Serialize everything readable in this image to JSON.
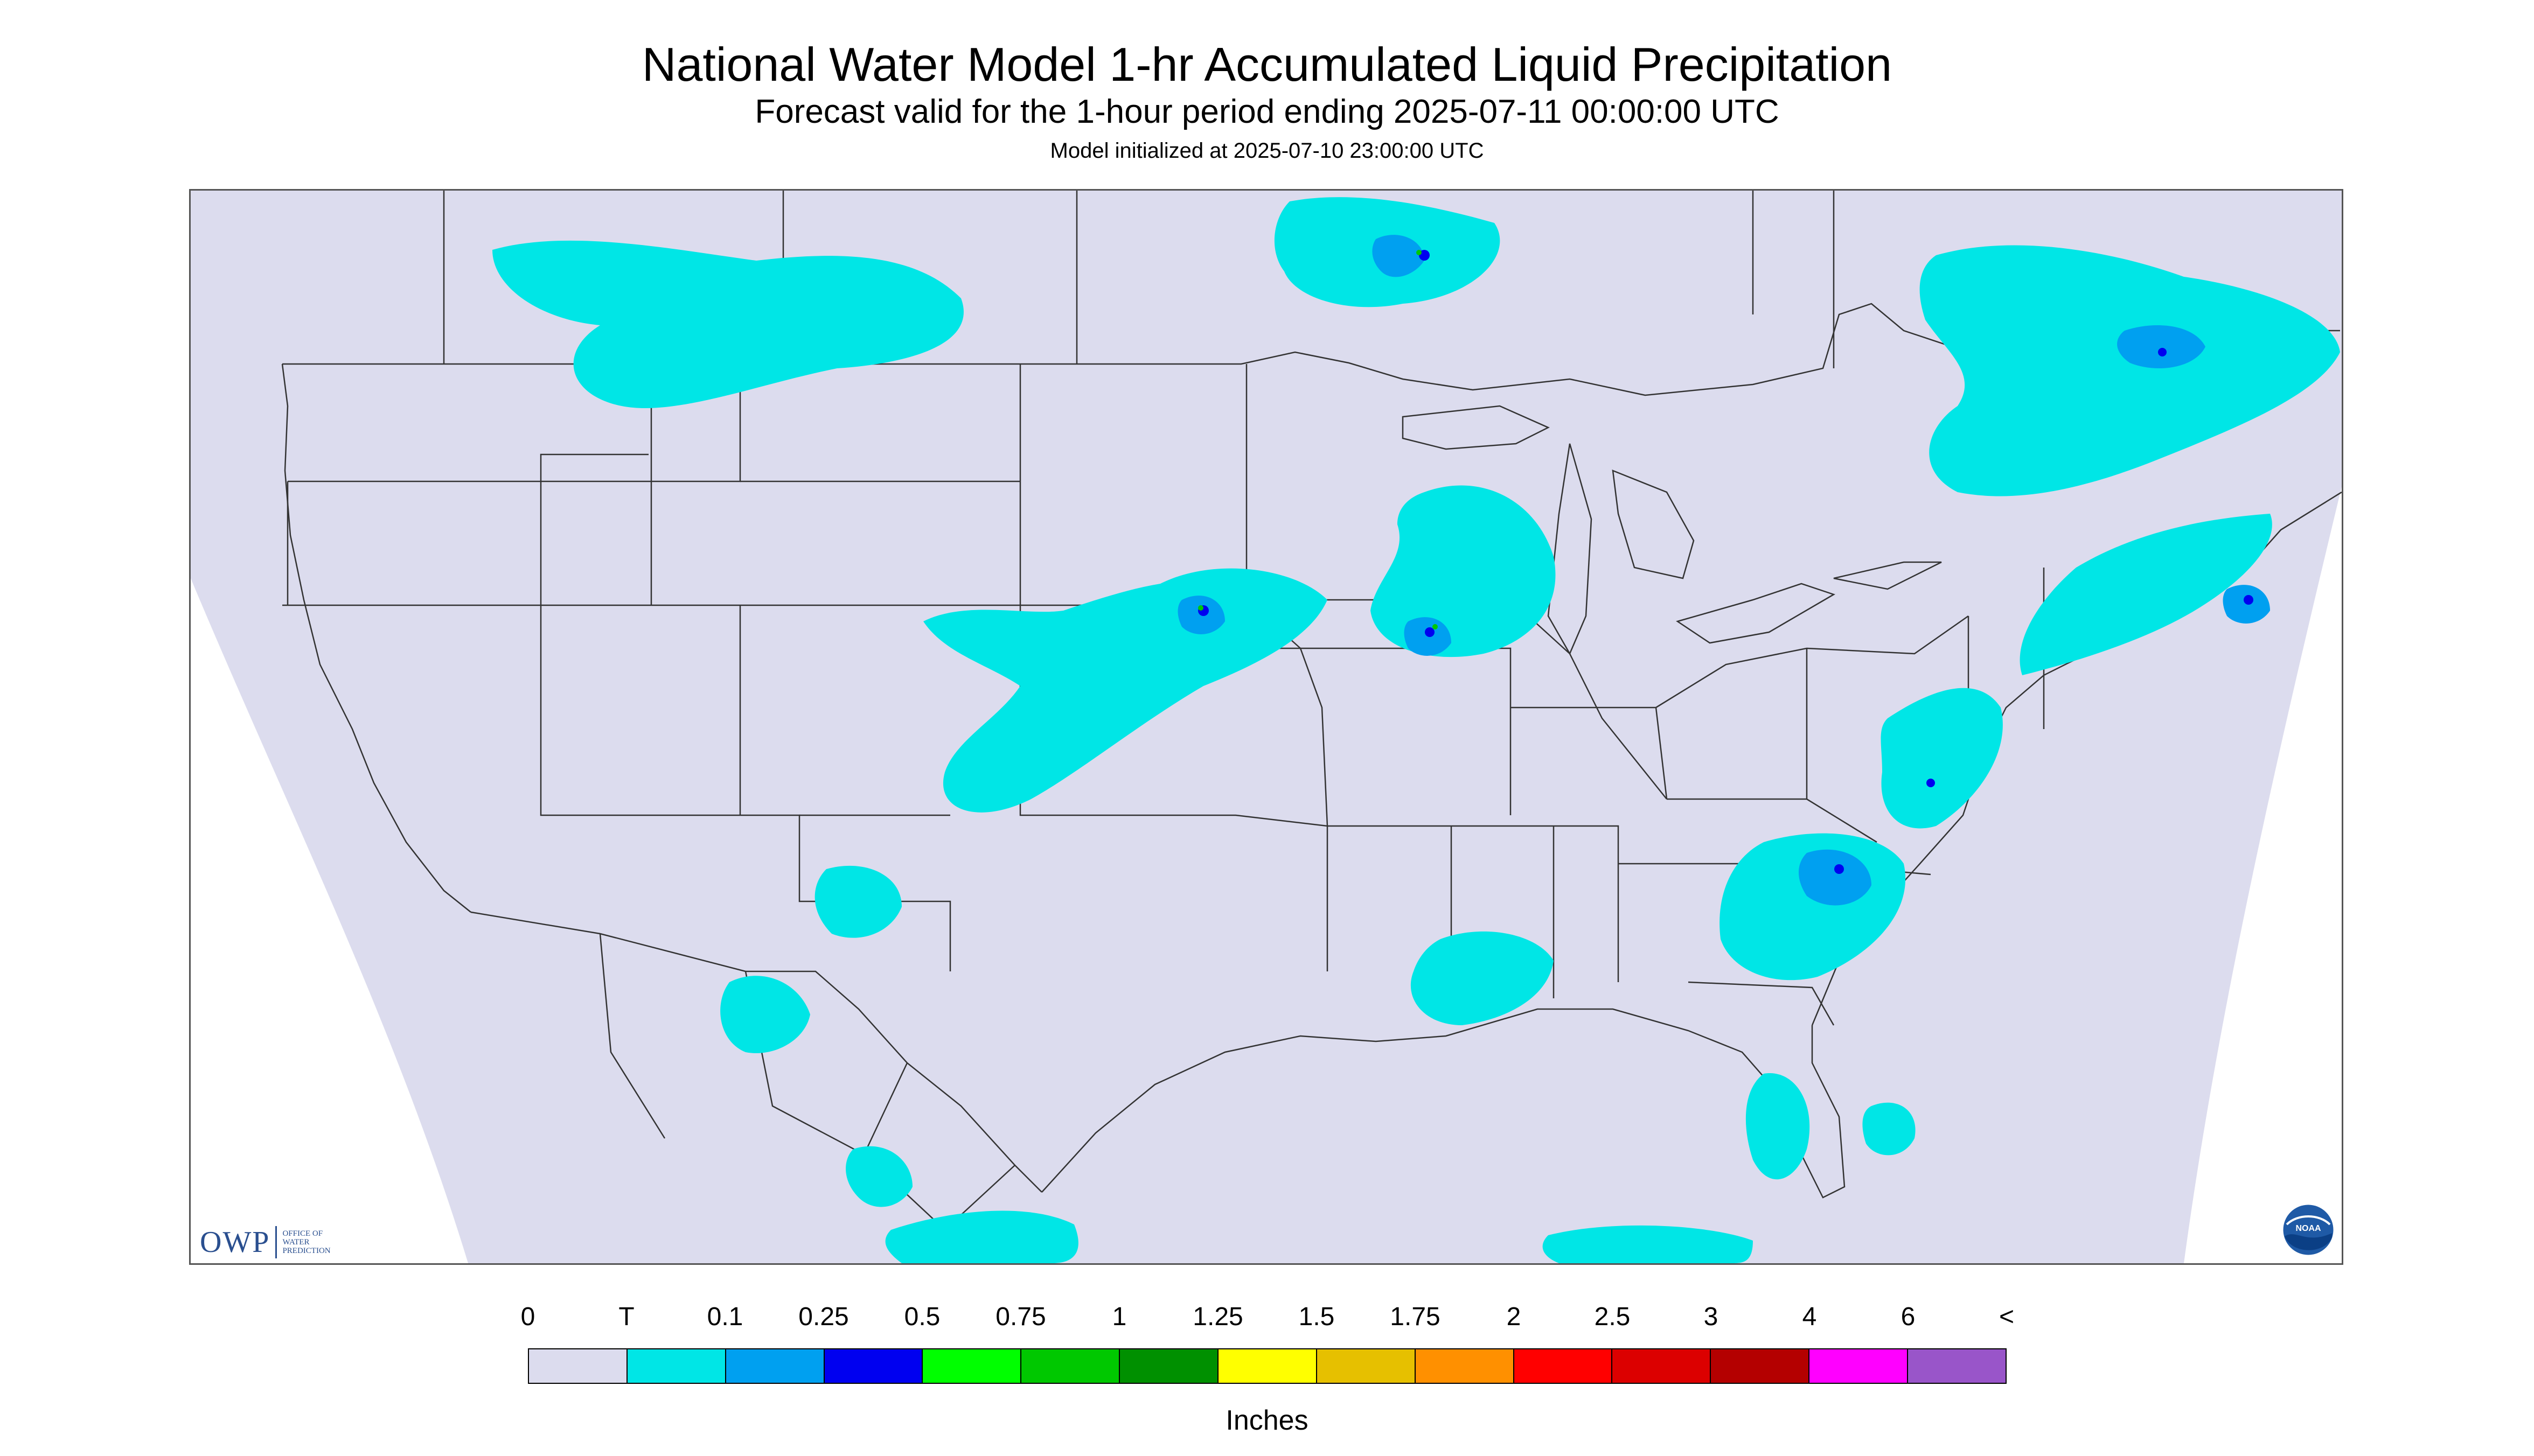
{
  "title": "National Water Model 1-hr Accumulated Liquid Precipitation",
  "subtitle": "Forecast valid for the 1-hour period ending 2025-07-11 00:00:00 UTC",
  "initialized": "Model initialized at 2025-07-10 23:00:00 UTC",
  "logos": {
    "owp_mark": "OWP",
    "owp_text_lines": [
      "OFFICE OF",
      "WATER",
      "PREDICTION"
    ],
    "noaa": "NOAA"
  },
  "legend": {
    "tick_labels": [
      "0",
      "T",
      "0.1",
      "0.25",
      "0.5",
      "0.75",
      "1",
      "1.25",
      "1.5",
      "1.75",
      "2",
      "2.5",
      "3",
      "4",
      "6",
      "<"
    ],
    "colors": [
      "#dcdcee",
      "#00e6e6",
      "#00a0f0",
      "#0000f0",
      "#00ff00",
      "#00c800",
      "#009000",
      "#ffff00",
      "#e6c000",
      "#ff9000",
      "#ff0000",
      "#dc0000",
      "#b40000",
      "#ff00ff",
      "#9955c9"
    ],
    "units": "Inches"
  },
  "map": {
    "domain_color": "#dcdcee",
    "outside_color": "#ffffff",
    "boundary_color": "#333333",
    "light_precip_color": "#00e6e6",
    "moderate_precip_color": "#00a0f0",
    "heavy_precip_color": "#0000f0",
    "peak_precip_color": "#00c800"
  }
}
